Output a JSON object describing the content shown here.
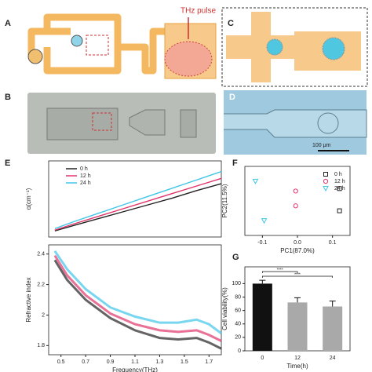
{
  "panels": {
    "a": "A",
    "b": "B",
    "c": "C",
    "d": "D",
    "e": "E",
    "f": "F",
    "g": "G",
    "thz": "THz pulse",
    "scale": "100 μm"
  },
  "chart_data": [
    {
      "type": "line",
      "ylabel": "α(cm⁻¹)",
      "xlim": [
        0.4,
        1.8
      ],
      "ylim": [
        0,
        100
      ],
      "legend": "upper left",
      "x": [
        0.45,
        0.6,
        0.8,
        1.0,
        1.2,
        1.4,
        1.6,
        1.8
      ],
      "series": [
        {
          "name": "0 h",
          "color": "#222222",
          "values": [
            8,
            15,
            24,
            33,
            42,
            51,
            61,
            70
          ]
        },
        {
          "name": "12 h",
          "color": "#e0356a",
          "values": [
            9,
            17,
            27,
            37,
            47,
            57,
            67,
            77
          ]
        },
        {
          "name": "24 h",
          "color": "#3fc6e8",
          "values": [
            11,
            20,
            31,
            42,
            53,
            64,
            75,
            86
          ]
        }
      ]
    },
    {
      "type": "line",
      "ylabel": "Refractive index",
      "xlabel": "Frequency(THz)",
      "xlim": [
        0.4,
        1.8
      ],
      "ylim": [
        1.74,
        2.46
      ],
      "xticks": [
        0.5,
        0.7,
        0.9,
        1.1,
        1.3,
        1.5,
        1.7
      ],
      "yticks": [
        1.8,
        2.0,
        2.2,
        2.4
      ],
      "x": [
        0.45,
        0.55,
        0.7,
        0.9,
        1.1,
        1.3,
        1.45,
        1.6,
        1.7,
        1.8
      ],
      "series": [
        {
          "color": "#3fc6e8",
          "values": [
            2.42,
            2.3,
            2.17,
            2.05,
            1.99,
            1.95,
            1.95,
            1.97,
            1.94,
            1.88
          ]
        },
        {
          "color": "#e0356a",
          "values": [
            2.39,
            2.26,
            2.13,
            2.01,
            1.94,
            1.9,
            1.89,
            1.9,
            1.87,
            1.83
          ]
        },
        {
          "color": "#222222",
          "values": [
            2.36,
            2.23,
            2.1,
            1.98,
            1.9,
            1.85,
            1.84,
            1.85,
            1.82,
            1.78
          ]
        }
      ]
    },
    {
      "type": "scatter",
      "xlabel": "PC1(87.0%)",
      "ylabel": "PC2(11.5%)",
      "xlim": [
        -0.15,
        0.15
      ],
      "ylim": [
        -0.07,
        0.07
      ],
      "xticks": [
        {
          "value": -0.1,
          "label": "-0.1"
        },
        {
          "value": 0,
          "label": "0.0"
        },
        {
          "value": 0.1,
          "label": "0.1"
        }
      ],
      "legend": "upper right",
      "series": [
        {
          "name": "0 h",
          "color": "#222222",
          "marker": "square",
          "x": [
            0.12,
            0.12
          ],
          "values": [
            0.025,
            -0.02
          ]
        },
        {
          "name": "12 h",
          "color": "#e0356a",
          "marker": "circle",
          "x": [
            -0.005,
            -0.005
          ],
          "values": [
            0.02,
            -0.01
          ]
        },
        {
          "name": "24 h",
          "color": "#3fc6e8",
          "marker": "triangle",
          "x": [
            -0.12,
            -0.095
          ],
          "values": [
            0.04,
            -0.04
          ]
        }
      ]
    },
    {
      "type": "bar",
      "xlabel": "Time(h)",
      "ylabel": "Cell viability(%)",
      "categories": [
        "0",
        "12",
        "24"
      ],
      "values": [
        100,
        72,
        66
      ],
      "errors": [
        5,
        7,
        8
      ],
      "colors": [
        "#111111",
        "#a9a9a9",
        "#a9a9a9"
      ],
      "ylim": [
        0,
        125
      ],
      "yticks": [
        0,
        20,
        40,
        60,
        80,
        100
      ],
      "annotations": [
        "****",
        "****"
      ]
    }
  ]
}
